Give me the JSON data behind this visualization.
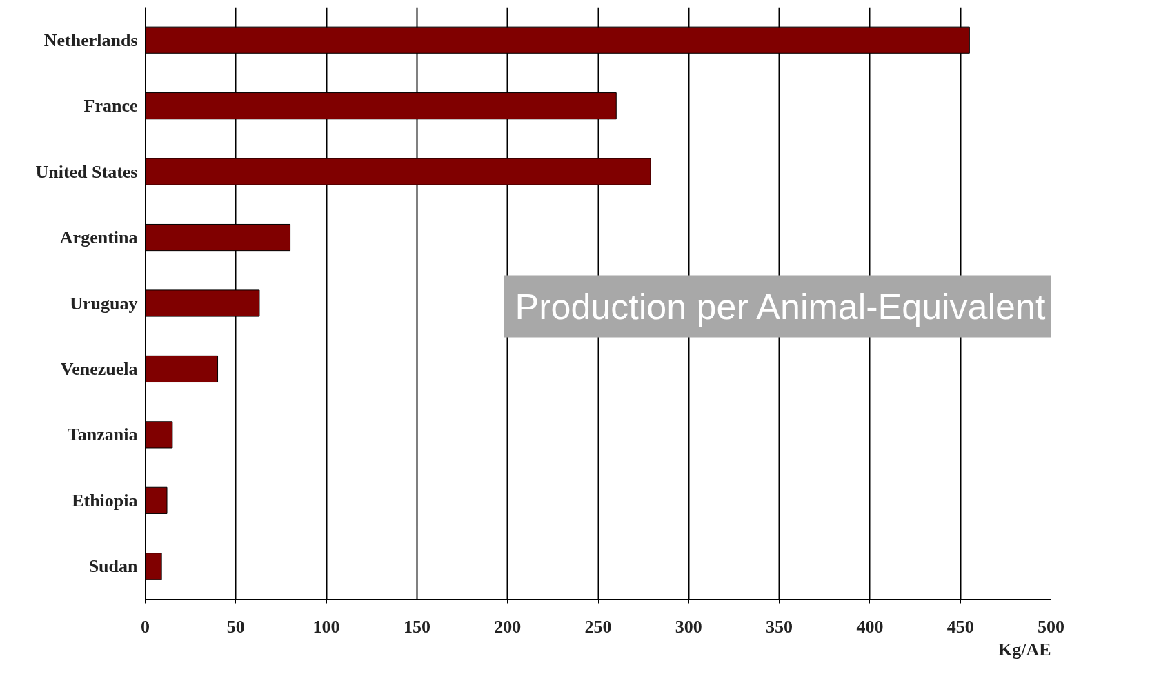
{
  "chart_data": {
    "type": "bar",
    "orientation": "horizontal",
    "categories": [
      "Netherlands",
      "France",
      "United States",
      "Argentina",
      "Uruguay",
      "Venezuela",
      "Tanzania",
      "Ethiopia",
      "Sudan"
    ],
    "values": [
      455,
      260,
      279,
      80,
      63,
      40,
      15,
      12,
      9
    ],
    "color": "#800000",
    "xlabel": "Kg/AE",
    "xlim": [
      0,
      500
    ],
    "xticks": [
      0,
      50,
      100,
      150,
      200,
      250,
      300,
      350,
      400,
      450,
      500
    ],
    "grid": "x",
    "annotations": [
      "Production per Animal-Equivalent"
    ]
  }
}
